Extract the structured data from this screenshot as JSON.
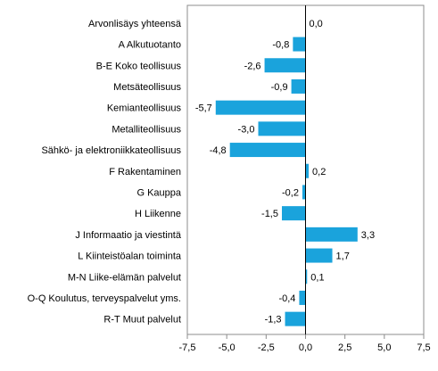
{
  "chart_data": {
    "type": "bar",
    "orientation": "horizontal",
    "categories": [
      "Arvonlisäys yhteensä",
      "A Alkutuotanto",
      "B-E Koko teollisuus",
      "Metsäteollisuus",
      "Kemianteollisuus",
      "Metalliteollisuus",
      "Sähkö- ja elektroniikkateollisuus",
      "F Rakentaminen",
      "G Kauppa",
      "H Liikenne",
      "J Informaatio ja viestintä",
      "L Kiinteistöalan toiminta",
      "M-N Liike-elämän palvelut",
      "O-Q Koulutus, terveyspalvelut yms.",
      "R-T Muut palvelut"
    ],
    "values": [
      0.0,
      -0.8,
      -2.6,
      -0.9,
      -5.7,
      -3.0,
      -4.8,
      0.2,
      -0.2,
      -1.5,
      3.3,
      1.7,
      0.1,
      -0.4,
      -1.3
    ],
    "value_labels": [
      "0,0",
      "-0,8",
      "-2,6",
      "-0,9",
      "-5,7",
      "-3,0",
      "-4,8",
      "0,2",
      "-0,2",
      "-1,5",
      "3,3",
      "1,7",
      "0,1",
      "-0,4",
      "-1,3"
    ],
    "xlim": [
      -7.5,
      7.5
    ],
    "xticks": [
      -7.5,
      -5.0,
      -2.5,
      0.0,
      2.5,
      5.0,
      7.5
    ],
    "xtick_labels": [
      "-7,5",
      "-5,0",
      "-2,5",
      "0,0",
      "2,5",
      "5,0",
      "7,5"
    ],
    "title": "",
    "xlabel": "",
    "ylabel": "",
    "grid": false,
    "legend": "none",
    "bar_color": "#1aa3dc",
    "axis_color": "#000000",
    "frame_color": "#8c8c8c"
  }
}
